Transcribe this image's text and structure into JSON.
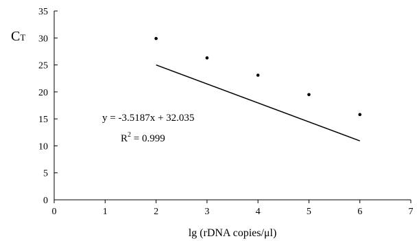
{
  "chart_data": {
    "type": "scatter",
    "xlabel": "lg (rDNA copies/μl)",
    "ylabel": {
      "main": "C",
      "sub": "T"
    },
    "xlim": [
      0,
      7
    ],
    "ylim": [
      0,
      35
    ],
    "xticks": [
      "0",
      "1",
      "2",
      "3",
      "4",
      "5",
      "6",
      "7"
    ],
    "yticks": [
      "0",
      "5",
      "10",
      "15",
      "20",
      "25",
      "30",
      "35"
    ],
    "grid": false,
    "points": [
      {
        "x": 2,
        "y": 29.9
      },
      {
        "x": 3,
        "y": 26.3
      },
      {
        "x": 4,
        "y": 23.1
      },
      {
        "x": 5,
        "y": 19.5
      },
      {
        "x": 6,
        "y": 15.8
      }
    ],
    "trendline": {
      "slope": -3.5187,
      "intercept": 32.035,
      "x_range": [
        2,
        6
      ]
    },
    "annotations": {
      "equation": "y = -3.5187x + 32.035",
      "r2_prefix": "R",
      "r2_sup": "2",
      "r2_value": " = 0.999"
    }
  }
}
